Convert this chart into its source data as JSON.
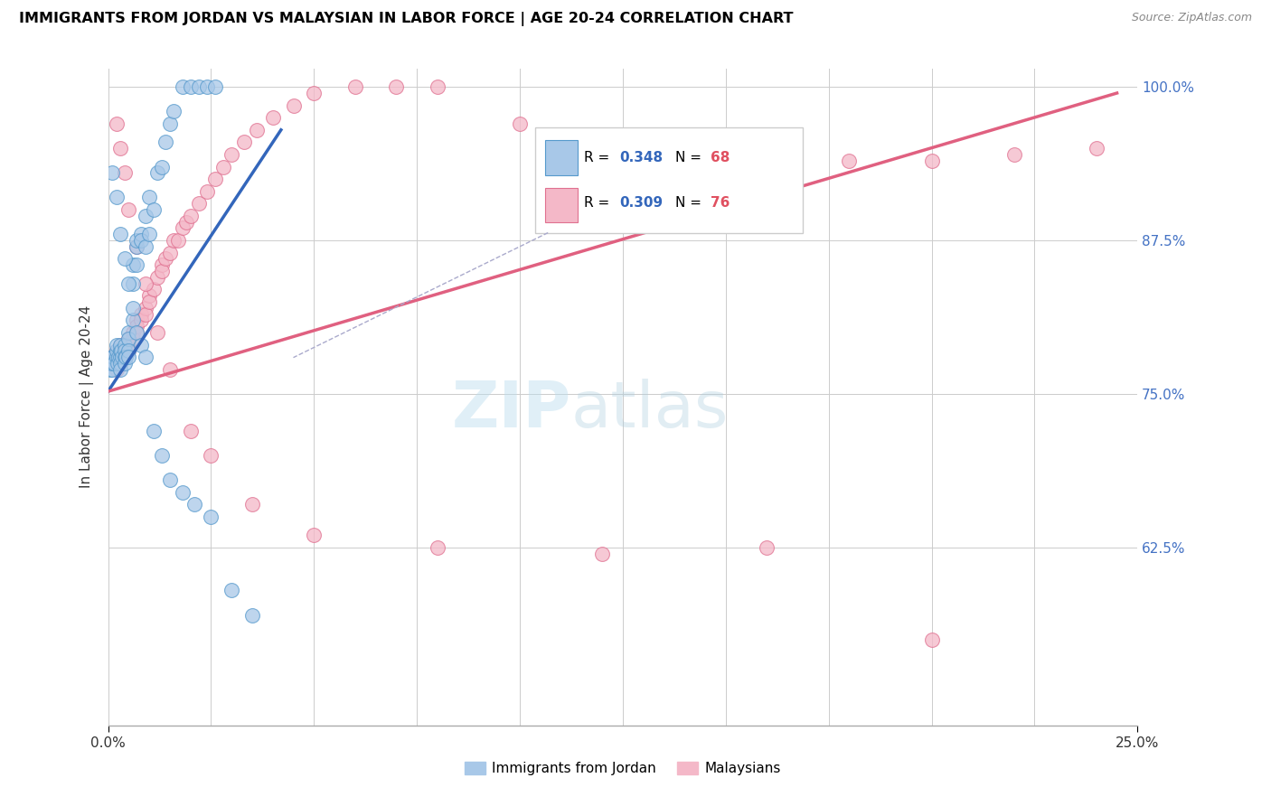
{
  "title": "IMMIGRANTS FROM JORDAN VS MALAYSIAN IN LABOR FORCE | AGE 20-24 CORRELATION CHART",
  "source": "Source: ZipAtlas.com",
  "ylabel_label": "In Labor Force | Age 20-24",
  "y_ticks": [
    0.625,
    0.75,
    0.875,
    1.0
  ],
  "y_tick_labels": [
    "62.5%",
    "75.0%",
    "87.5%",
    "100.0%"
  ],
  "x_left_label": "0.0%",
  "x_right_label": "25.0%",
  "jordan_color_fill": "#a8c8e8",
  "jordan_color_edge": "#5599cc",
  "malaysian_color_fill": "#f4b8c8",
  "malaysian_color_edge": "#e07090",
  "jordan_line_color": "#3366bb",
  "malaysian_line_color": "#e06080",
  "legend_r_color": "#3366bb",
  "legend_n_color": "#e05060",
  "watermark_color": "#ddeeff",
  "jordan_R": 0.348,
  "jordan_N": 68,
  "malaysian_R": 0.309,
  "malaysian_N": 76,
  "jordan_x": [
    0.0005,
    0.0008,
    0.001,
    0.001,
    0.001,
    0.0012,
    0.0015,
    0.002,
    0.002,
    0.002,
    0.0022,
    0.0025,
    0.003,
    0.003,
    0.003,
    0.003,
    0.003,
    0.0032,
    0.0035,
    0.004,
    0.004,
    0.004,
    0.004,
    0.0042,
    0.005,
    0.005,
    0.005,
    0.005,
    0.006,
    0.006,
    0.006,
    0.007,
    0.007,
    0.007,
    0.008,
    0.008,
    0.009,
    0.009,
    0.01,
    0.01,
    0.011,
    0.012,
    0.013,
    0.014,
    0.015,
    0.016,
    0.018,
    0.02,
    0.022,
    0.024,
    0.026,
    0.001,
    0.002,
    0.003,
    0.004,
    0.005,
    0.006,
    0.007,
    0.008,
    0.009,
    0.011,
    0.013,
    0.015,
    0.018,
    0.021,
    0.025,
    0.03,
    0.035
  ],
  "jordan_y": [
    0.77,
    0.775,
    0.77,
    0.78,
    0.775,
    0.78,
    0.775,
    0.78,
    0.785,
    0.79,
    0.775,
    0.78,
    0.78,
    0.785,
    0.79,
    0.775,
    0.77,
    0.785,
    0.78,
    0.79,
    0.785,
    0.78,
    0.775,
    0.78,
    0.8,
    0.795,
    0.785,
    0.78,
    0.81,
    0.84,
    0.855,
    0.87,
    0.875,
    0.855,
    0.88,
    0.875,
    0.895,
    0.87,
    0.91,
    0.88,
    0.9,
    0.93,
    0.935,
    0.955,
    0.97,
    0.98,
    1.0,
    1.0,
    1.0,
    1.0,
    1.0,
    0.93,
    0.91,
    0.88,
    0.86,
    0.84,
    0.82,
    0.8,
    0.79,
    0.78,
    0.72,
    0.7,
    0.68,
    0.67,
    0.66,
    0.65,
    0.59,
    0.57
  ],
  "malaysian_x": [
    0.0005,
    0.001,
    0.001,
    0.0015,
    0.002,
    0.002,
    0.002,
    0.003,
    0.003,
    0.003,
    0.003,
    0.004,
    0.004,
    0.004,
    0.005,
    0.005,
    0.005,
    0.006,
    0.006,
    0.007,
    0.007,
    0.007,
    0.008,
    0.008,
    0.009,
    0.009,
    0.01,
    0.01,
    0.011,
    0.012,
    0.013,
    0.013,
    0.014,
    0.015,
    0.016,
    0.017,
    0.018,
    0.019,
    0.02,
    0.022,
    0.024,
    0.026,
    0.028,
    0.03,
    0.033,
    0.036,
    0.04,
    0.045,
    0.05,
    0.06,
    0.07,
    0.08,
    0.1,
    0.12,
    0.14,
    0.16,
    0.18,
    0.2,
    0.22,
    0.24,
    0.002,
    0.003,
    0.004,
    0.005,
    0.007,
    0.009,
    0.012,
    0.015,
    0.02,
    0.025,
    0.035,
    0.05,
    0.08,
    0.12,
    0.16,
    0.2
  ],
  "malaysian_y": [
    0.775,
    0.775,
    0.78,
    0.775,
    0.78,
    0.785,
    0.77,
    0.79,
    0.785,
    0.78,
    0.775,
    0.79,
    0.785,
    0.78,
    0.795,
    0.79,
    0.785,
    0.8,
    0.795,
    0.81,
    0.805,
    0.8,
    0.815,
    0.81,
    0.82,
    0.815,
    0.83,
    0.825,
    0.835,
    0.845,
    0.855,
    0.85,
    0.86,
    0.865,
    0.875,
    0.875,
    0.885,
    0.89,
    0.895,
    0.905,
    0.915,
    0.925,
    0.935,
    0.945,
    0.955,
    0.965,
    0.975,
    0.985,
    0.995,
    1.0,
    1.0,
    1.0,
    0.97,
    0.96,
    0.95,
    0.945,
    0.94,
    0.94,
    0.945,
    0.95,
    0.97,
    0.95,
    0.93,
    0.9,
    0.87,
    0.84,
    0.8,
    0.77,
    0.72,
    0.7,
    0.66,
    0.635,
    0.625,
    0.62,
    0.625,
    0.55
  ],
  "jordan_line_x0": 0.0,
  "jordan_line_x1": 0.042,
  "jordan_line_y0": 0.752,
  "jordan_line_y1": 0.965,
  "malaysian_line_x0": 0.0,
  "malaysian_line_x1": 0.245,
  "malaysian_line_y0": 0.752,
  "malaysian_line_y1": 0.995,
  "ylim_min": 0.48,
  "ylim_max": 1.015,
  "xlim_min": 0.0,
  "xlim_max": 0.25
}
